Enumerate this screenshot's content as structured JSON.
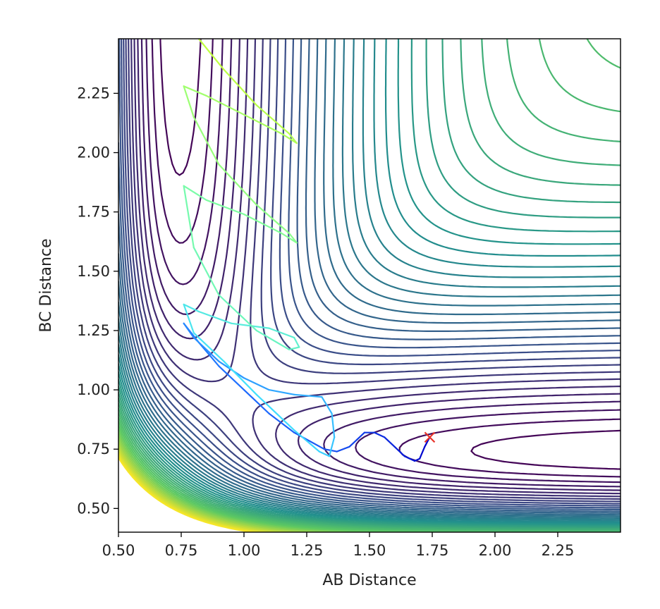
{
  "chart_data": {
    "type": "contour",
    "title": "",
    "xlabel": "AB Distance",
    "ylabel": "BC Distance",
    "xlim": [
      0.5,
      2.5
    ],
    "ylim": [
      0.4,
      2.48
    ],
    "xticks": [
      0.5,
      0.75,
      1.0,
      1.25,
      1.5,
      1.75,
      2.0,
      2.25
    ],
    "xtick_labels": [
      "0.50",
      "0.75",
      "1.00",
      "1.25",
      "1.50",
      "1.75",
      "2.00",
      "2.25"
    ],
    "yticks": [
      0.5,
      0.75,
      1.0,
      1.25,
      1.5,
      1.75,
      2.0,
      2.25
    ],
    "ytick_labels": [
      "0.50",
      "0.75",
      "1.00",
      "1.25",
      "1.50",
      "1.75",
      "2.00",
      "2.25"
    ],
    "grid": false,
    "colormap": "viridis",
    "colormap_stops": [
      "#440154",
      "#3b528b",
      "#21908d",
      "#5dc962",
      "#fde725"
    ],
    "trajectory": {
      "color_gradient": [
        "#0000cc",
        "#1f6fff",
        "#40e0ff",
        "#80ffa0",
        "#c0ff40"
      ],
      "points": [
        [
          1.74,
          0.8
        ],
        [
          1.72,
          0.76
        ],
        [
          1.7,
          0.71
        ],
        [
          1.68,
          0.7
        ],
        [
          1.64,
          0.72
        ],
        [
          1.6,
          0.76
        ],
        [
          1.56,
          0.8
        ],
        [
          1.52,
          0.82
        ],
        [
          1.48,
          0.82
        ],
        [
          1.45,
          0.79
        ],
        [
          1.42,
          0.76
        ],
        [
          1.37,
          0.74
        ],
        [
          1.32,
          0.75
        ],
        [
          1.2,
          0.82
        ],
        [
          1.1,
          0.9
        ],
        [
          1.0,
          1.0
        ],
        [
          0.9,
          1.1
        ],
        [
          0.82,
          1.2
        ],
        [
          0.76,
          1.28
        ],
        [
          0.8,
          1.22
        ],
        [
          0.9,
          1.12
        ],
        [
          1.0,
          1.05
        ],
        [
          1.1,
          1.0
        ],
        [
          1.2,
          0.98
        ],
        [
          1.31,
          0.97
        ],
        [
          1.35,
          0.9
        ],
        [
          1.36,
          0.8
        ],
        [
          1.34,
          0.72
        ],
        [
          1.3,
          0.74
        ],
        [
          1.2,
          0.83
        ],
        [
          1.05,
          0.98
        ],
        [
          0.92,
          1.12
        ],
        [
          0.8,
          1.24
        ],
        [
          0.76,
          1.36
        ],
        [
          0.82,
          1.33
        ],
        [
          0.95,
          1.28
        ],
        [
          1.1,
          1.26
        ],
        [
          1.2,
          1.22
        ],
        [
          1.22,
          1.18
        ],
        [
          1.18,
          1.17
        ],
        [
          1.05,
          1.25
        ],
        [
          0.9,
          1.4
        ],
        [
          0.8,
          1.6
        ],
        [
          0.76,
          1.86
        ],
        [
          0.85,
          1.8
        ],
        [
          1.0,
          1.74
        ],
        [
          1.15,
          1.66
        ],
        [
          1.21,
          1.62
        ],
        [
          1.18,
          1.66
        ],
        [
          1.05,
          1.78
        ],
        [
          0.9,
          1.95
        ],
        [
          0.8,
          2.15
        ],
        [
          0.76,
          2.28
        ],
        [
          0.85,
          2.24
        ],
        [
          1.0,
          2.16
        ],
        [
          1.15,
          2.08
        ],
        [
          1.21,
          2.04
        ],
        [
          1.18,
          2.08
        ],
        [
          1.05,
          2.2
        ],
        [
          0.92,
          2.35
        ],
        [
          0.82,
          2.48
        ]
      ]
    },
    "end_marker": {
      "x": 1.74,
      "y": 0.8,
      "symbol": "x",
      "color": "#e8342a"
    }
  }
}
